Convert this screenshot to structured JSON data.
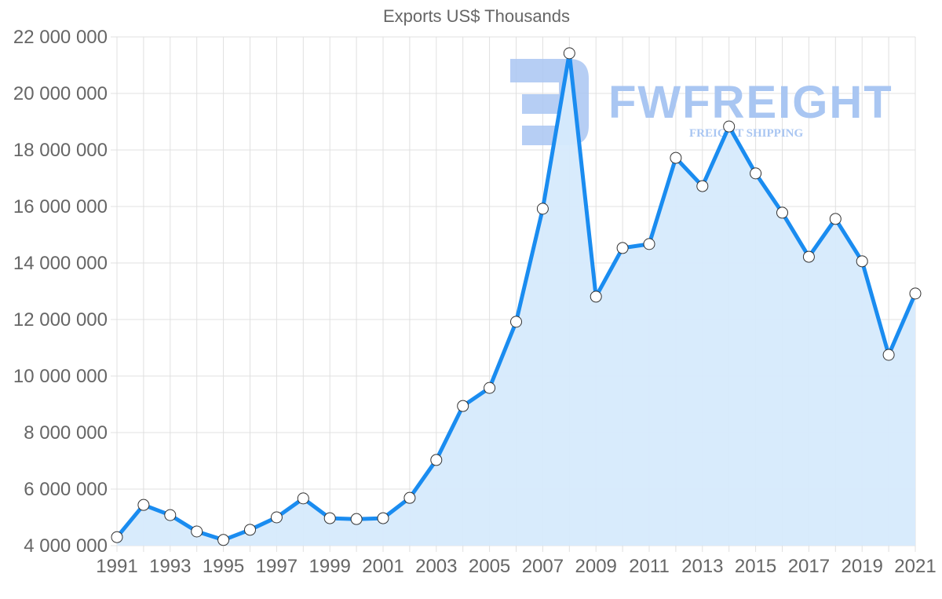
{
  "chart_data": {
    "type": "area",
    "title": "Exports US$ Thousands",
    "xlabel": "",
    "ylabel": "",
    "x": [
      1991,
      1992,
      1993,
      1994,
      1995,
      1996,
      1997,
      1998,
      1999,
      2000,
      2001,
      2002,
      2003,
      2004,
      2005,
      2006,
      2007,
      2008,
      2009,
      2010,
      2011,
      2012,
      2013,
      2014,
      2015,
      2016,
      2017,
      2018,
      2019,
      2020,
      2021
    ],
    "series": [
      {
        "name": "Exports US$ Thousands",
        "values": [
          4300000,
          5440000,
          5080000,
          4500000,
          4200000,
          4560000,
          5000000,
          5670000,
          4970000,
          4940000,
          4970000,
          5690000,
          7030000,
          8940000,
          9580000,
          11920000,
          15920000,
          21420000,
          12810000,
          14530000,
          14670000,
          17720000,
          16720000,
          18830000,
          17170000,
          15780000,
          14220000,
          15560000,
          14060000,
          10750000,
          12920000
        ]
      }
    ],
    "ylim": [
      4000000,
      22000000
    ],
    "yticks": [
      4000000,
      6000000,
      8000000,
      10000000,
      12000000,
      14000000,
      16000000,
      18000000,
      20000000,
      22000000
    ],
    "ytick_labels": [
      "4 000 000",
      "6 000 000",
      "8 000 000",
      "10 000 000",
      "12 000 000",
      "14 000 000",
      "16 000 000",
      "18 000 000",
      "20 000 000",
      "22 000 000"
    ],
    "xtick_labels": [
      "1991",
      "1993",
      "1995",
      "1997",
      "1999",
      "2001",
      "2003",
      "2005",
      "2007",
      "2009",
      "2011",
      "2013",
      "2015",
      "2017",
      "2019",
      "2021"
    ],
    "grid": true,
    "legend": "none",
    "colors": {
      "line": "#1a8cf0",
      "fill": "#d6eafc",
      "point_fill": "#ffffff",
      "point_stroke": "#333333",
      "grid": "#e0e0e0",
      "text": "#666666"
    }
  },
  "watermark": {
    "brand": "FWFREIGHT",
    "tagline": "FREIGHT SHIPPING",
    "color": "#a9c6f2"
  }
}
